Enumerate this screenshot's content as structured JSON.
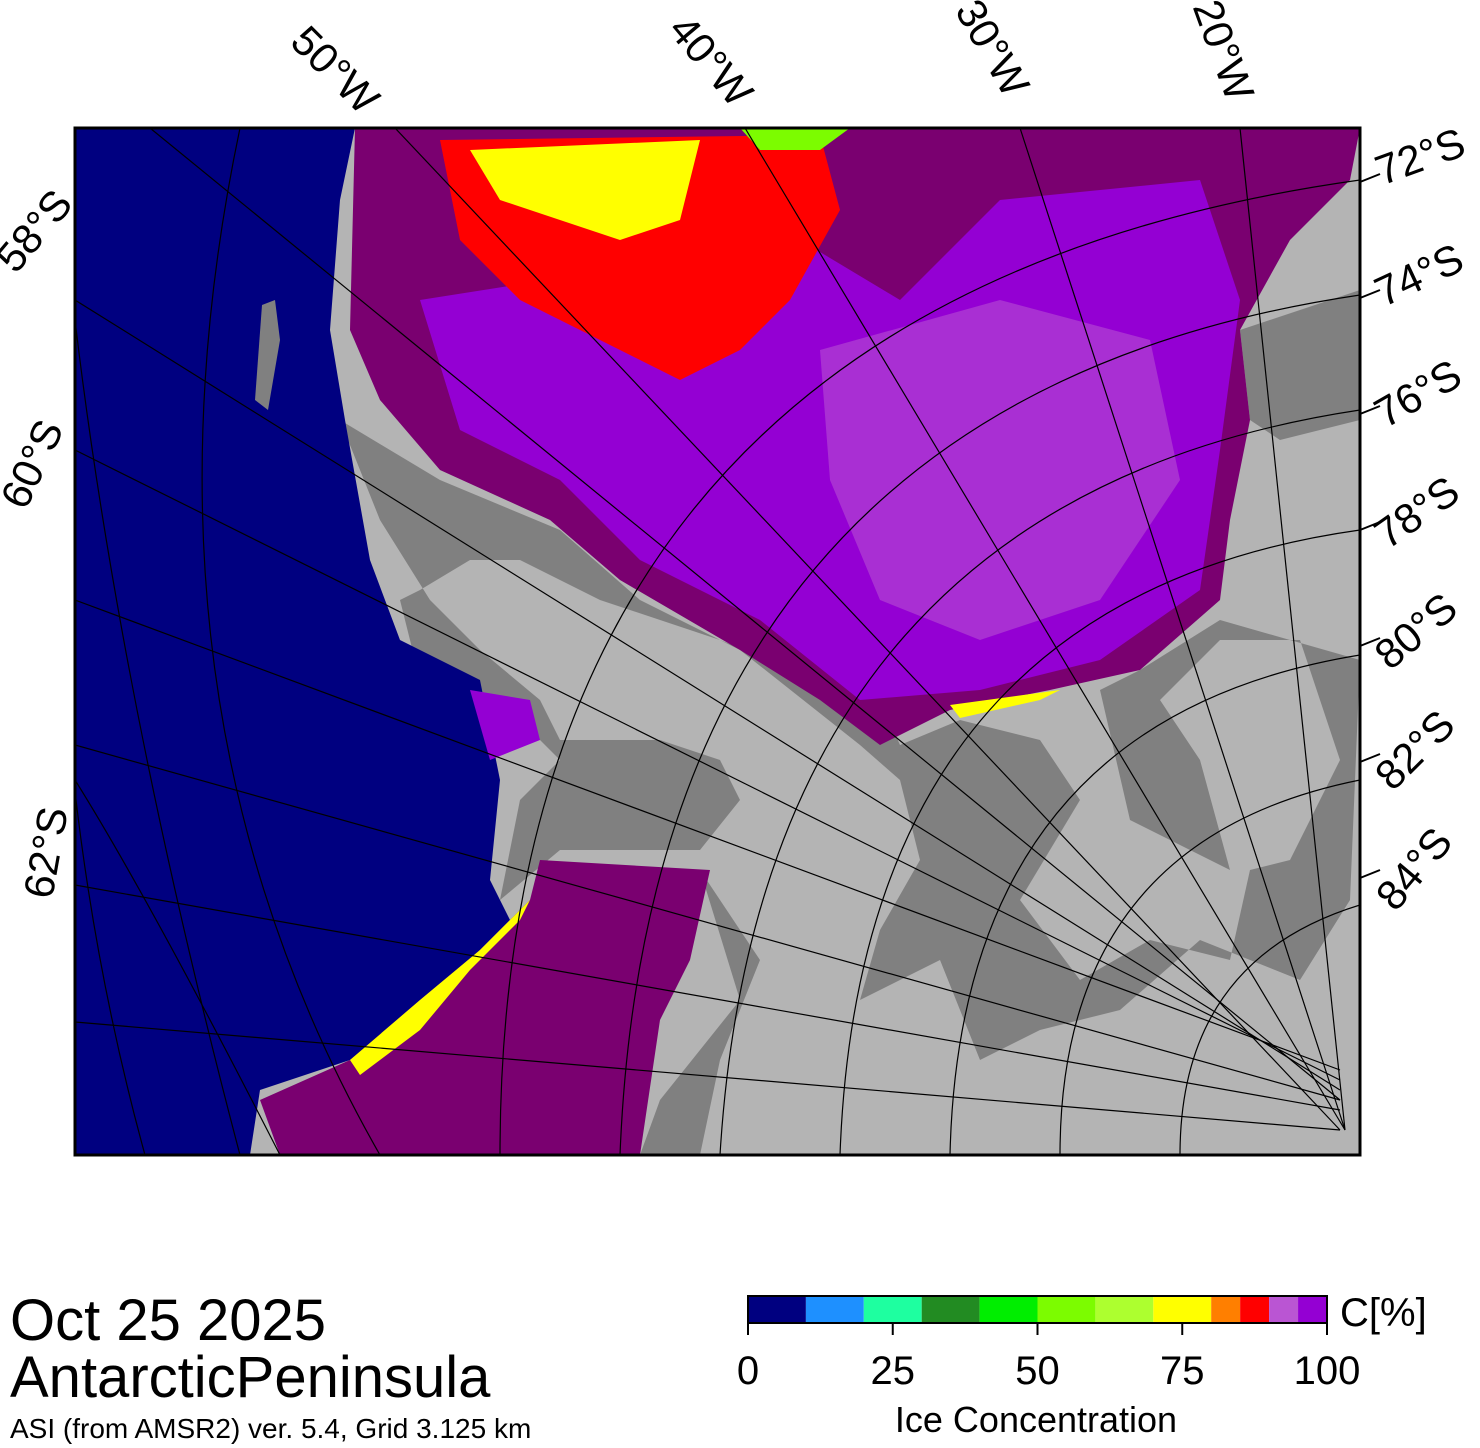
{
  "map": {
    "lon_labels": [
      "50°W",
      "40°W",
      "30°W",
      "20°W"
    ],
    "lat_labels_left": [
      "58°S",
      "60°S",
      "62°S"
    ],
    "lat_labels_right": [
      "72°S",
      "74°S",
      "76°S",
      "78°S",
      "80°S",
      "82°S",
      "84°S"
    ]
  },
  "date": "Oct 25 2025",
  "region": "AntarcticPeninsula",
  "source": "ASI (from AMSR2) ver. 5.4,  Grid 3.125 km",
  "colorbar": {
    "label": "Ice Concentration",
    "unit": "C[%]",
    "lim": [
      0,
      100
    ],
    "ticks": [
      0,
      25,
      50,
      75,
      100
    ],
    "bins": [
      0,
      10,
      20,
      30,
      40,
      50,
      60,
      70,
      80,
      85,
      90,
      95,
      100
    ],
    "colors": [
      "#000080",
      "#1e90ff",
      "#1effa0",
      "#228b22",
      "#00ee00",
      "#7cfc00",
      "#adff2f",
      "#ffff00",
      "#ff7f00",
      "#ff0000",
      "#ba55d3",
      "#9400d3"
    ]
  }
}
